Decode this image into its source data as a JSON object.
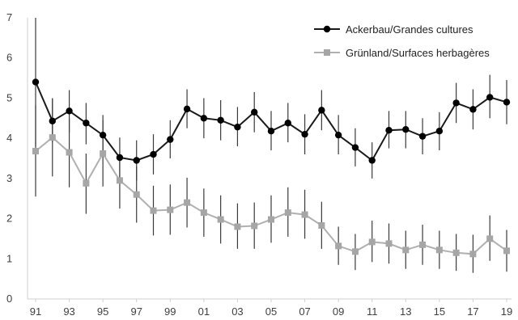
{
  "chart_data": {
    "type": "line",
    "x_tick_labels": [
      "91",
      "93",
      "95",
      "97",
      "99",
      "01",
      "03",
      "05",
      "07",
      "09",
      "11",
      "13",
      "15",
      "17",
      "19"
    ],
    "x": [
      1991,
      1992,
      1993,
      1994,
      1995,
      1996,
      1997,
      1998,
      1999,
      2000,
      2001,
      2002,
      2003,
      2004,
      2005,
      2006,
      2007,
      2008,
      2009,
      2010,
      2011,
      2012,
      2013,
      2014,
      2015,
      2016,
      2017,
      2018,
      2019
    ],
    "ylim": [
      0,
      7
    ],
    "yticks": [
      0,
      1,
      2,
      3,
      4,
      5,
      6,
      7
    ],
    "grid": false,
    "legend_position": "top-right",
    "series": [
      {
        "name": "Ackerbau/Grandes cultures",
        "color": "#000000",
        "line_color": "#1a1a1a",
        "marker": "circle",
        "values": [
          5.4,
          4.43,
          4.68,
          4.38,
          4.08,
          3.52,
          3.45,
          3.6,
          3.97,
          4.73,
          4.5,
          4.45,
          4.28,
          4.65,
          4.18,
          4.38,
          4.1,
          4.7,
          4.08,
          3.77,
          3.45,
          4.2,
          4.22,
          4.05,
          4.18,
          4.88,
          4.72,
          5.02,
          4.9
        ],
        "err_low": [
          3.8,
          3.9,
          4.15,
          3.85,
          3.58,
          3.0,
          2.95,
          3.1,
          3.5,
          4.25,
          4.0,
          3.95,
          3.8,
          4.15,
          3.7,
          3.9,
          3.6,
          4.2,
          3.6,
          3.3,
          3.0,
          3.75,
          3.75,
          3.6,
          3.7,
          4.38,
          4.22,
          4.5,
          4.35
        ],
        "err_high": [
          7.0,
          4.98,
          5.2,
          4.88,
          4.58,
          4.02,
          3.95,
          4.1,
          4.45,
          5.22,
          5.0,
          4.95,
          4.78,
          5.15,
          4.68,
          4.88,
          4.6,
          5.2,
          4.58,
          4.25,
          3.9,
          4.68,
          4.68,
          4.5,
          4.65,
          5.38,
          5.22,
          5.58,
          5.45
        ]
      },
      {
        "name": "Grünland/Surfaces herbagères",
        "color": "#a6a6a6",
        "line_color": "#b0b0b0",
        "marker": "square",
        "values": [
          3.68,
          4.02,
          3.65,
          2.88,
          3.62,
          2.95,
          2.6,
          2.2,
          2.22,
          2.4,
          2.15,
          1.98,
          1.8,
          1.82,
          1.98,
          2.15,
          2.1,
          1.83,
          1.32,
          1.18,
          1.42,
          1.38,
          1.22,
          1.35,
          1.22,
          1.15,
          1.12,
          1.5,
          1.2
        ],
        "err_low": [
          2.55,
          3.05,
          2.78,
          2.12,
          2.8,
          2.25,
          1.9,
          1.58,
          1.6,
          1.78,
          1.55,
          1.38,
          1.25,
          1.25,
          1.4,
          1.55,
          1.5,
          1.25,
          0.85,
          0.72,
          0.92,
          0.88,
          0.75,
          0.85,
          0.75,
          0.7,
          0.65,
          0.95,
          0.68
        ],
        "err_high": [
          4.82,
          5.0,
          4.5,
          3.62,
          4.45,
          3.65,
          3.3,
          2.82,
          2.85,
          3.02,
          2.75,
          2.58,
          2.38,
          2.4,
          2.58,
          2.78,
          2.72,
          2.42,
          1.8,
          1.62,
          1.95,
          1.88,
          1.7,
          1.85,
          1.7,
          1.62,
          1.6,
          2.08,
          1.72
        ]
      }
    ]
  }
}
